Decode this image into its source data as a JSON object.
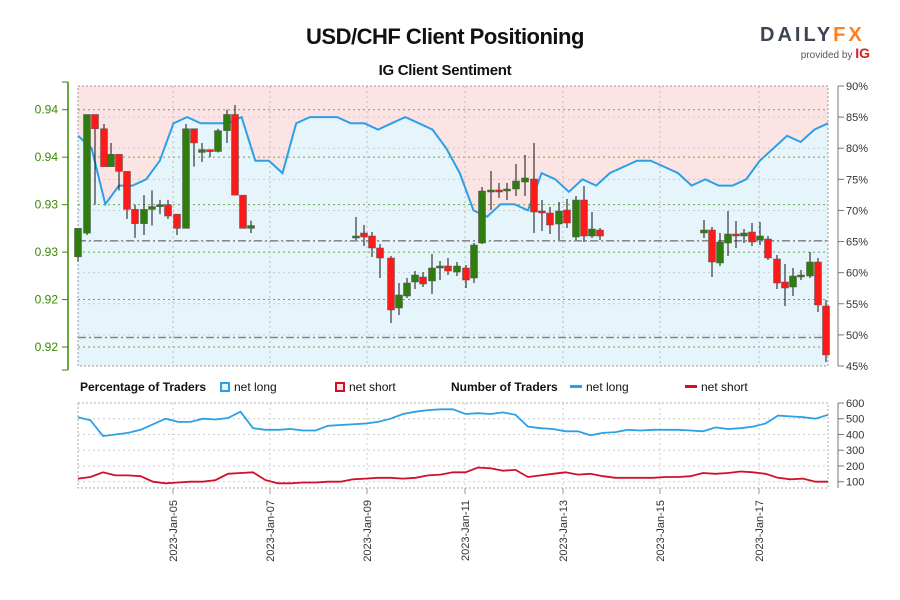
{
  "header": {
    "title": "USD/CHF Client Positioning",
    "subtitle": "IG Client Sentiment",
    "logo_brand_a": "DAILY",
    "logo_brand_b": "FX",
    "logo_provided": "provided by ",
    "logo_ig": "IG"
  },
  "legend": {
    "pct_title": "Percentage of Traders",
    "pct_long": "net long",
    "pct_short": "net short",
    "num_title": "Number of Traders",
    "num_long": "net long",
    "num_short": "net short"
  },
  "colors": {
    "bull": "#2e7d0e",
    "bear": "#ff1a1a",
    "net_long": "#2ba0e6",
    "net_short": "#d0102a",
    "long_fill": "#e6f4fc",
    "short_fill": "#fce4e4",
    "axis_green": "#3a8a00",
    "axis_gray": "#777777"
  },
  "chart_data": [
    {
      "type": "candlestick+line",
      "title": "USD/CHF Client Positioning",
      "subtitle": "IG Client Sentiment",
      "left_axis": {
        "label": "Price",
        "ticks": [
          "0.94",
          "0.94",
          "0.93",
          "0.93",
          "0.92",
          "0.92"
        ],
        "tick_values": [
          0.94,
          0.935,
          0.93,
          0.925,
          0.92,
          0.915
        ]
      },
      "right_axis": {
        "label": "Net long %",
        "ticks": [
          "90%",
          "85%",
          "80%",
          "75%",
          "70%",
          "65%",
          "60%",
          "55%",
          "50%",
          "45%"
        ],
        "range": [
          45,
          90
        ]
      },
      "x_ticks": [
        "2023-Jan-05",
        "2023-Jan-07",
        "2023-Jan-09",
        "2023-Jan-11",
        "2023-Jan-13",
        "2023-Jan-15",
        "2023-Jan-17"
      ],
      "reference_lines": [
        0.9262,
        0.916
      ],
      "candles_ohlc_approx": [
        [
          0.9245,
          0.9265,
          0.924,
          0.9275
        ],
        [
          0.927,
          0.9275,
          0.9268,
          0.9395
        ],
        [
          0.9395,
          0.9395,
          0.93,
          0.938
        ],
        [
          0.938,
          0.9385,
          0.934,
          0.934
        ],
        [
          0.934,
          0.9365,
          0.934,
          0.9353
        ],
        [
          0.9353,
          0.9353,
          0.9315,
          0.9335
        ],
        [
          0.9335,
          0.9335,
          0.9285,
          0.9295
        ],
        [
          0.9295,
          0.93,
          0.9265,
          0.928
        ],
        [
          0.928,
          0.931,
          0.9268,
          0.9295
        ],
        [
          0.9295,
          0.9315,
          0.9278,
          0.9298
        ],
        [
          0.9298,
          0.9305,
          0.929,
          0.93
        ],
        [
          0.93,
          0.9305,
          0.9285,
          0.9288
        ],
        [
          0.929,
          0.929,
          0.9268,
          0.9275
        ],
        [
          0.9275,
          0.9385,
          0.9275,
          0.938
        ],
        [
          0.938,
          0.938,
          0.934,
          0.9365
        ],
        [
          0.9355,
          0.9365,
          0.9345,
          0.9358
        ],
        [
          0.9358,
          0.9358,
          0.935,
          0.9356
        ],
        [
          0.9356,
          0.938,
          0.9355,
          0.9378
        ],
        [
          0.9378,
          0.94,
          0.9365,
          0.9395
        ],
        [
          0.9395,
          0.9405,
          0.931,
          0.931
        ],
        [
          0.931,
          0.931,
          0.9275,
          0.9275
        ],
        [
          0.9275,
          0.9283,
          0.927,
          0.9278
        ]
      ],
      "net_long_pct_approx": [
        82,
        80,
        71,
        74,
        74,
        75,
        78,
        84,
        85,
        84,
        84,
        84,
        85,
        78,
        78,
        76,
        84,
        85,
        85,
        85,
        84,
        84,
        83,
        84,
        85,
        84,
        83,
        80,
        76,
        70,
        69,
        71,
        71,
        70,
        76,
        75,
        73,
        75,
        74,
        76,
        77,
        78,
        78,
        77,
        76,
        74,
        75,
        74,
        74,
        75,
        78,
        80,
        82,
        81,
        83,
        84
      ]
    },
    {
      "type": "line",
      "title": "Number of Traders",
      "y_ticks": [
        "600",
        "500",
        "400",
        "300",
        "200",
        "100"
      ],
      "ylim": [
        50,
        600
      ],
      "series": [
        {
          "name": "net long",
          "values": [
            510,
            490,
            390,
            400,
            410,
            430,
            465,
            500,
            480,
            480,
            500,
            495,
            505,
            545,
            440,
            430,
            430,
            435,
            425,
            425,
            455,
            460,
            465,
            470,
            480,
            500,
            530,
            545,
            555,
            560,
            560,
            530,
            535,
            530,
            540,
            525,
            450,
            440,
            435,
            420,
            420,
            395,
            410,
            415,
            430,
            425,
            430,
            430,
            430,
            425,
            420,
            445,
            435,
            440,
            450,
            470,
            520,
            515,
            510,
            500,
            525
          ]
        },
        {
          "name": "net short",
          "values": [
            120,
            130,
            160,
            140,
            140,
            135,
            100,
            90,
            95,
            100,
            100,
            110,
            150,
            155,
            160,
            110,
            90,
            90,
            95,
            95,
            100,
            100,
            115,
            120,
            125,
            125,
            120,
            125,
            140,
            145,
            160,
            160,
            190,
            185,
            170,
            175,
            130,
            140,
            150,
            160,
            145,
            150,
            135,
            125,
            125,
            125,
            125,
            130,
            130,
            135,
            155,
            150,
            155,
            165,
            160,
            150,
            125,
            115,
            120,
            100,
            100
          ]
        }
      ]
    }
  ]
}
